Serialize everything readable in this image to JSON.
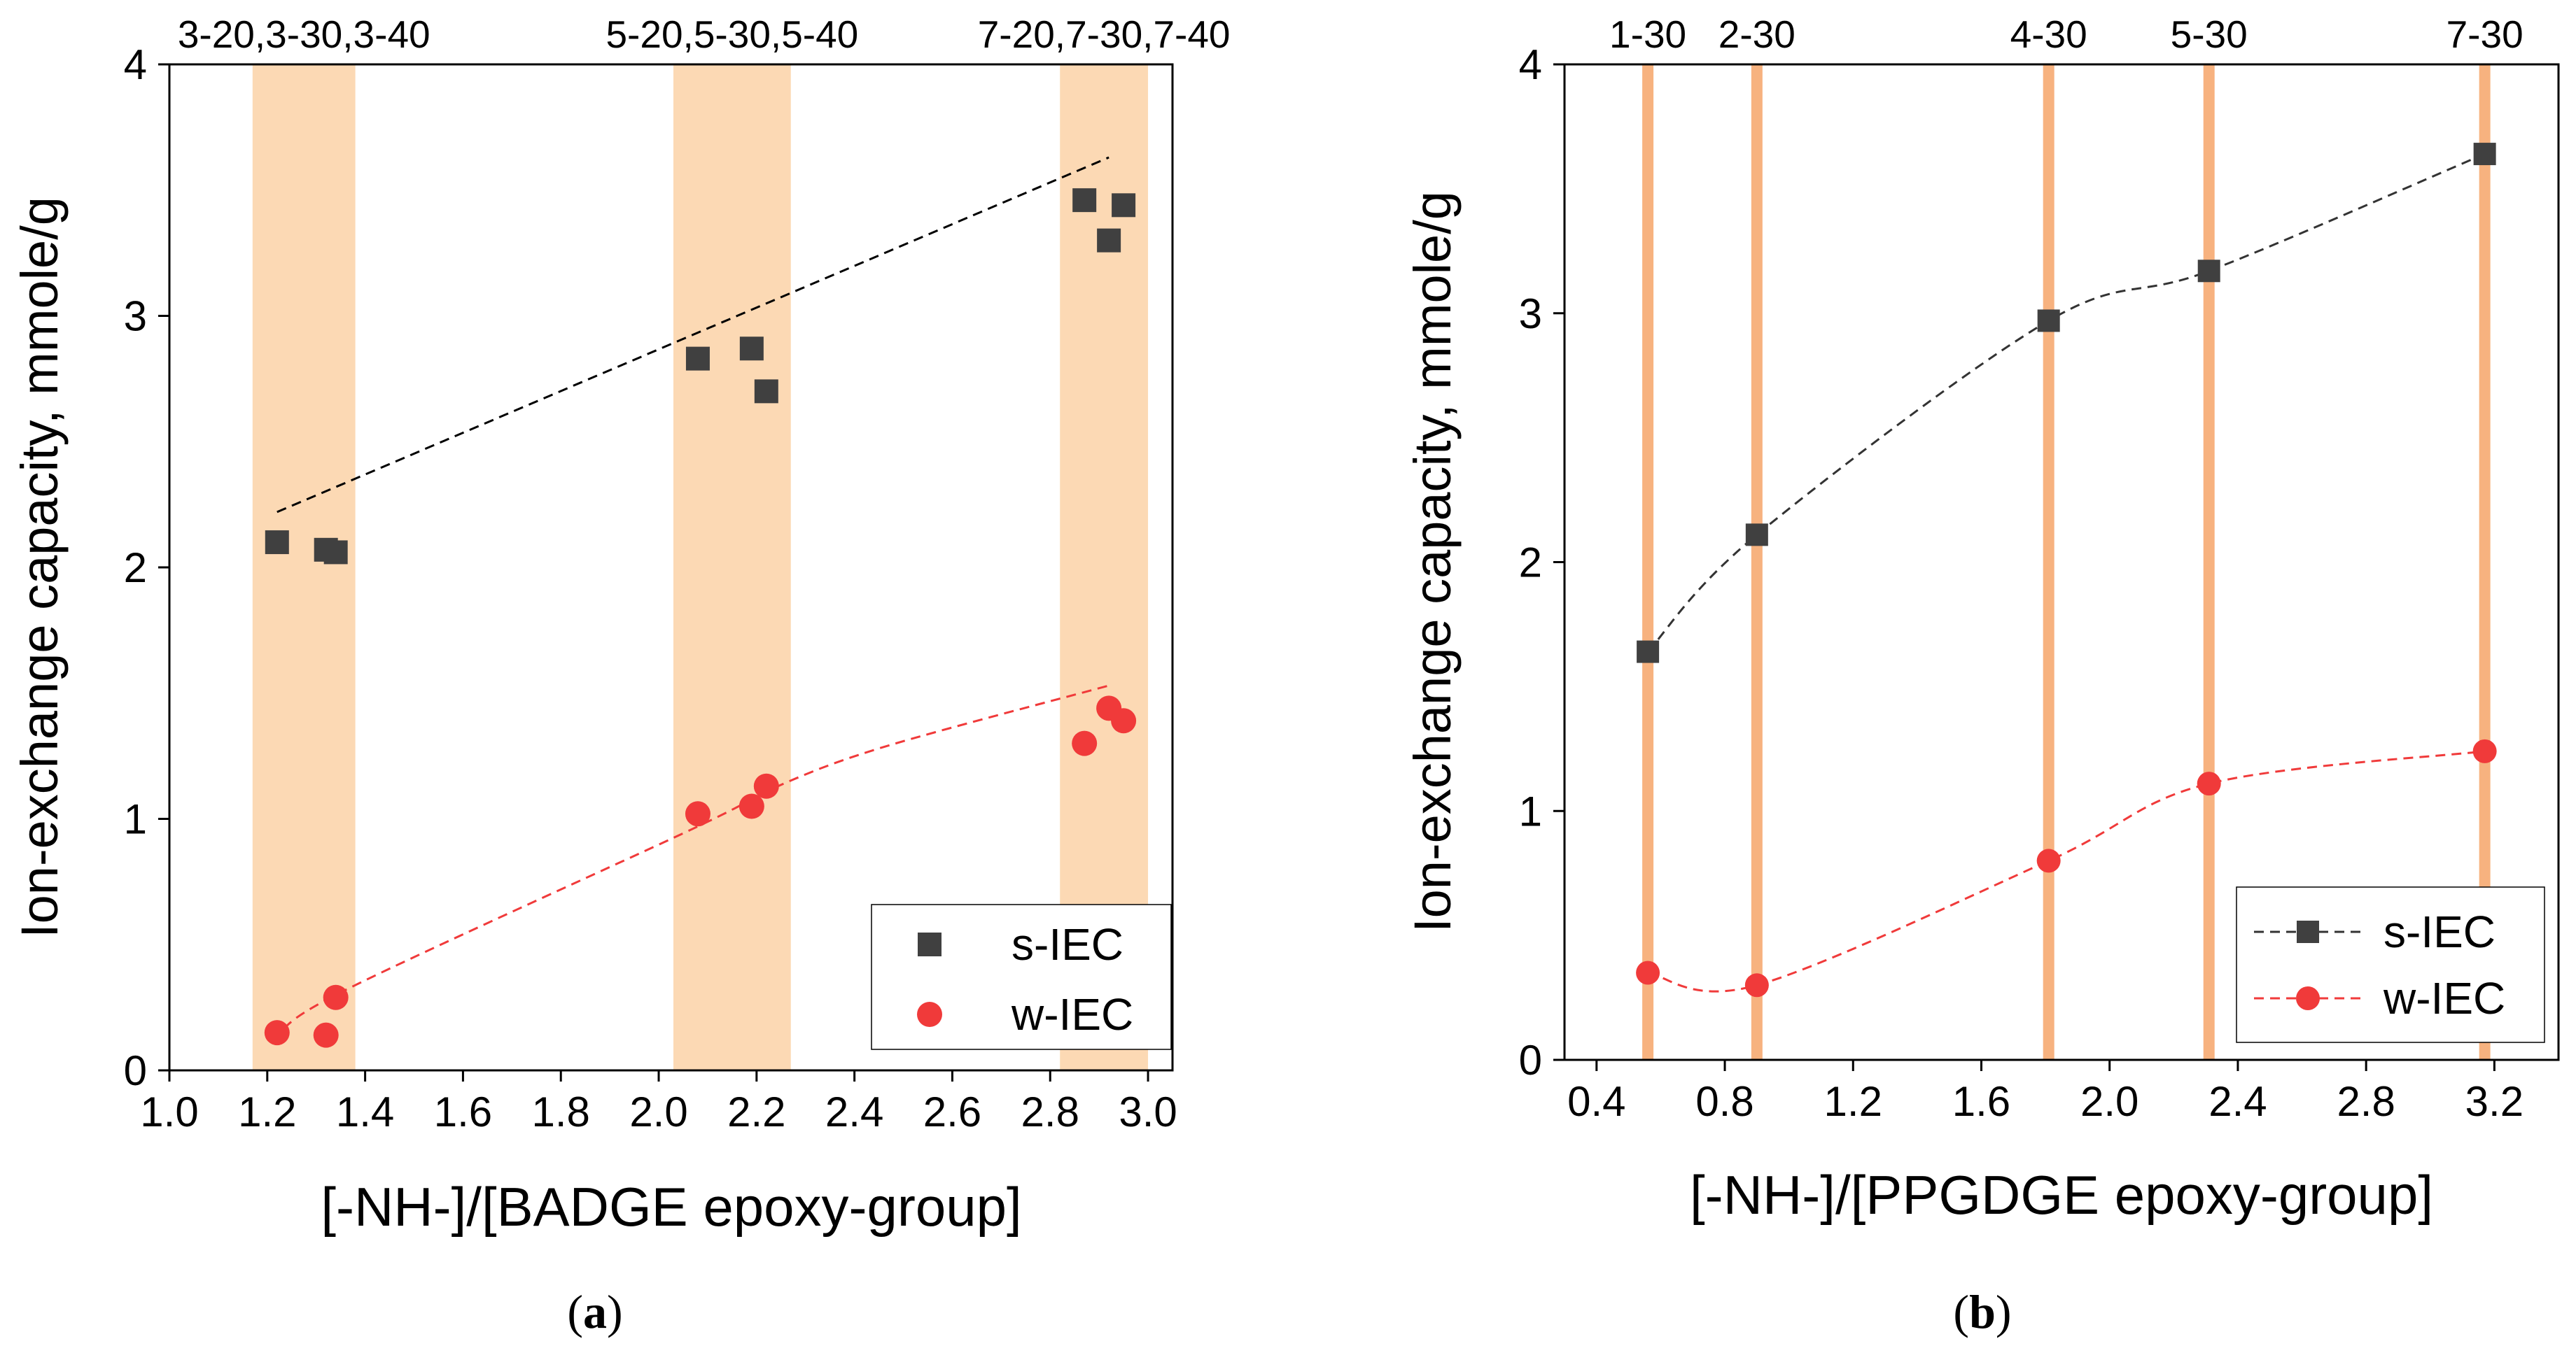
{
  "colors": {
    "band": "#fcd9b4",
    "line_band": "#f7b27f",
    "s_series": "#404040",
    "w_series": "#f03a3a",
    "axis": "#000000"
  },
  "chart_data": [
    {
      "type": "scatter",
      "panel_label": "(a)",
      "panel_letter": "a",
      "xlabel": "[-NH-]/[BADGE epoxy-group]",
      "ylabel": "Ion-exchange capacity, mmole/g",
      "xlim": [
        1.0,
        3.05
      ],
      "ylim": [
        0,
        4
      ],
      "xticks": [
        1.0,
        1.2,
        1.4,
        1.6,
        1.8,
        2.0,
        2.2,
        2.4,
        2.6,
        2.8,
        3.0
      ],
      "xtick_labels": [
        "1.0",
        "1.2",
        "1.4",
        "1.6",
        "1.8",
        "2.0",
        "2.2",
        "2.4",
        "2.6",
        "2.8",
        "3.0"
      ],
      "yticks": [
        0,
        1,
        2,
        3,
        4
      ],
      "ytick_labels": [
        "0",
        "1",
        "2",
        "3",
        "4"
      ],
      "bands": [
        {
          "label": "3-20,3-30,3-40",
          "from": 1.17,
          "to": 1.38
        },
        {
          "label": "5-20,5-30,5-40",
          "from": 2.03,
          "to": 2.27
        },
        {
          "label": "7-20,7-30,7-40",
          "from": 2.82,
          "to": 3.0
        }
      ],
      "series": [
        {
          "name": "s-IEC",
          "marker": "square",
          "x": [
            1.22,
            1.32,
            1.34,
            2.08,
            2.19,
            2.22,
            2.87,
            2.92,
            2.95
          ],
          "y": [
            2.1,
            2.07,
            2.06,
            2.83,
            2.87,
            2.7,
            3.46,
            3.3,
            3.44
          ],
          "trend": {
            "x": [
              1.22,
              2.92
            ],
            "y": [
              2.22,
              3.63
            ]
          }
        },
        {
          "name": "w-IEC",
          "marker": "circle",
          "x": [
            1.22,
            1.32,
            1.34,
            2.08,
            2.19,
            2.22,
            2.87,
            2.92,
            2.95
          ],
          "y": [
            0.15,
            0.14,
            0.29,
            1.02,
            1.05,
            1.13,
            1.3,
            1.44,
            1.39
          ],
          "trend": {
            "x": [
              1.22,
              1.34,
              2.08,
              2.22,
              2.45,
              2.92
            ],
            "y": [
              0.11,
              0.3,
              0.97,
              1.11,
              1.28,
              1.53
            ]
          }
        }
      ],
      "legend": {
        "position": "bottom-right",
        "items": [
          "s-IEC",
          "w-IEC"
        ],
        "style": "markers-only"
      }
    },
    {
      "type": "line",
      "panel_label": "(b)",
      "panel_letter": "b",
      "xlabel": "[-NH-]/[PPGDGE epoxy-group]",
      "ylabel": "Ion-exchange capacity, mmole/g",
      "xlim": [
        0.3,
        3.4
      ],
      "ylim": [
        0,
        4
      ],
      "xticks": [
        0.4,
        0.8,
        1.2,
        1.6,
        2.0,
        2.4,
        2.8,
        3.2
      ],
      "xtick_labels": [
        "0.4",
        "0.8",
        "1.2",
        "1.6",
        "2.0",
        "2.4",
        "2.8",
        "3.2"
      ],
      "yticks": [
        0,
        1,
        2,
        3,
        4
      ],
      "ytick_labels": [
        "0",
        "1",
        "2",
        "3",
        "4"
      ],
      "vlines": [
        {
          "label": "1-30",
          "x": 0.56
        },
        {
          "label": "2-30",
          "x": 0.9
        },
        {
          "label": "4-30",
          "x": 1.81
        },
        {
          "label": "5-30",
          "x": 2.31
        },
        {
          "label": "7-30",
          "x": 3.17
        }
      ],
      "series": [
        {
          "name": "s-IEC",
          "marker": "square",
          "x": [
            0.56,
            0.9,
            1.81,
            2.31,
            3.17
          ],
          "y": [
            1.64,
            2.11,
            2.97,
            3.17,
            3.64
          ]
        },
        {
          "name": "w-IEC",
          "marker": "circle",
          "x": [
            0.56,
            0.9,
            1.81,
            2.31,
            3.17
          ],
          "y": [
            0.35,
            0.3,
            0.8,
            1.11,
            1.24
          ]
        }
      ],
      "legend": {
        "position": "bottom-right",
        "items": [
          "s-IEC",
          "w-IEC"
        ],
        "style": "line-marker"
      }
    }
  ]
}
